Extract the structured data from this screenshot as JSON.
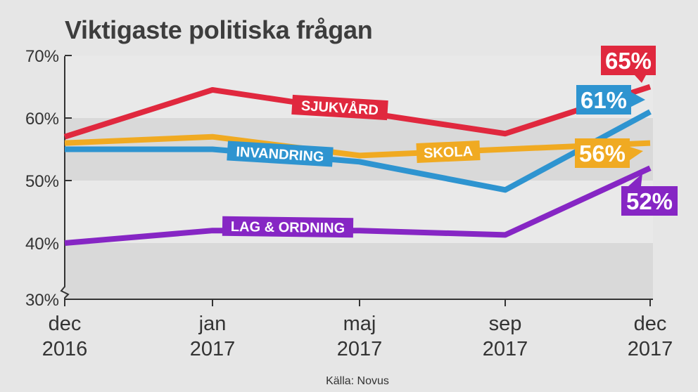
{
  "title": "Viktigaste politiska frågan",
  "source": "Källa: Novus",
  "chart_data": {
    "type": "line",
    "title": "Viktigaste politiska frågan",
    "x": [
      "dec 2016",
      "jan 2017",
      "maj 2017",
      "sep 2017",
      "dec 2017"
    ],
    "x_tick_labels": [
      [
        "dec",
        "2016"
      ],
      [
        "jan",
        "2017"
      ],
      [
        "maj",
        "2017"
      ],
      [
        "sep",
        "2017"
      ],
      [
        "dec",
        "2017"
      ]
    ],
    "y_ticks": [
      30,
      40,
      50,
      60,
      70
    ],
    "y_tick_labels": [
      "30%",
      "40%",
      "50%",
      "60%",
      "70%"
    ],
    "ylim": [
      30,
      70
    ],
    "y_axis_break": true,
    "grid": "alternating bands",
    "series": [
      {
        "name": "SJUKVÅRD",
        "color": "#e0283e",
        "values": [
          57,
          64.5,
          61,
          57.5,
          65
        ],
        "end_label": "65%"
      },
      {
        "name": "SKOLA",
        "color": "#f0aa22",
        "values": [
          56,
          57,
          54,
          55,
          56
        ],
        "end_label": "56%"
      },
      {
        "name": "INVANDRING",
        "color": "#2e94d0",
        "values": [
          55,
          55,
          53,
          48.5,
          61
        ],
        "end_label": "61%"
      },
      {
        "name": "LAG & ORDNING",
        "color": "#8626c4",
        "values": [
          40,
          42,
          42,
          41.3,
          52
        ],
        "end_label": "52%"
      }
    ]
  }
}
